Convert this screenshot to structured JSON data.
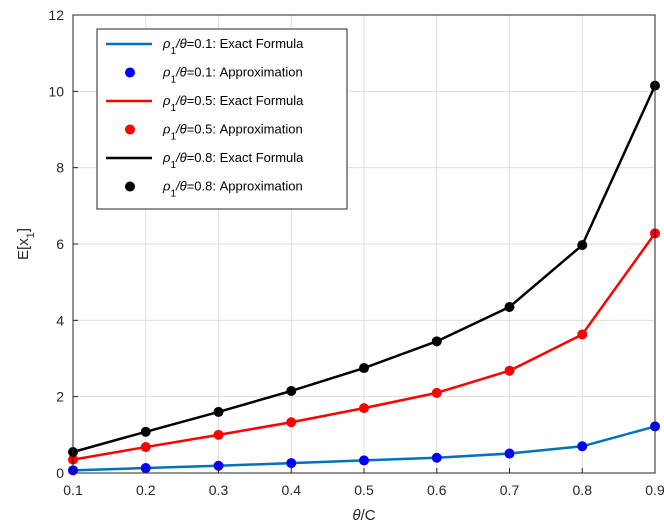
{
  "chart_data": {
    "type": "line",
    "x": [
      0.1,
      0.2,
      0.3,
      0.4,
      0.5,
      0.6,
      0.7,
      0.8,
      0.9
    ],
    "xlabel_italic": "θ",
    "xlabel_rest": "/C",
    "ylabel_main": "E[x",
    "ylabel_sub": "1",
    "ylabel_close": "]",
    "xlim": [
      0.1,
      0.9
    ],
    "ylim": [
      0,
      12
    ],
    "xticks": [
      "0.1",
      "0.2",
      "0.3",
      "0.4",
      "0.5",
      "0.6",
      "0.7",
      "0.8",
      "0.9"
    ],
    "yticks": [
      "0",
      "2",
      "4",
      "6",
      "8",
      "10",
      "12"
    ],
    "grid": true,
    "legend_position": "top-left",
    "series": [
      {
        "rho": "0.1",
        "color": "#0072BD",
        "exact": [
          0.07,
          0.13,
          0.19,
          0.26,
          0.33,
          0.4,
          0.51,
          0.7,
          1.22
        ],
        "approx": [
          0.07,
          0.13,
          0.19,
          0.26,
          0.33,
          0.4,
          0.51,
          0.7,
          1.22
        ]
      },
      {
        "rho": "0.5",
        "color": "#FF0000",
        "exact": [
          0.35,
          0.68,
          1.0,
          1.33,
          1.7,
          2.1,
          2.68,
          3.63,
          6.28
        ],
        "approx": [
          0.35,
          0.68,
          1.0,
          1.33,
          1.7,
          2.1,
          2.68,
          3.63,
          6.28
        ]
      },
      {
        "rho": "0.8",
        "color": "#000000",
        "exact": [
          0.55,
          1.08,
          1.6,
          2.15,
          2.75,
          3.45,
          4.35,
          5.97,
          10.15
        ],
        "approx": [
          0.55,
          1.08,
          1.6,
          2.15,
          2.75,
          3.45,
          4.35,
          5.97,
          10.15
        ]
      }
    ],
    "legend": [
      {
        "prefix": "ρ",
        "sub": "1",
        "slash_theta": "/θ",
        "value": "=0.1: ",
        "label": "Exact Formula",
        "kind": "line",
        "color": "#0072BD"
      },
      {
        "prefix": "ρ",
        "sub": "1",
        "slash_theta": "/θ",
        "value": "=0.1: ",
        "label": "Approximation",
        "kind": "marker",
        "color": "#0000FF"
      },
      {
        "prefix": "ρ",
        "sub": "1",
        "slash_theta": "/θ",
        "value": "=0.5: ",
        "label": "Exact Formula",
        "kind": "line",
        "color": "#FF0000"
      },
      {
        "prefix": "ρ",
        "sub": "1",
        "slash_theta": "/θ",
        "value": "=0.5: ",
        "label": "Approximation",
        "kind": "marker",
        "color": "#FF0000"
      },
      {
        "prefix": "ρ",
        "sub": "1",
        "slash_theta": "/θ",
        "value": "=0.8: ",
        "label": "Exact Formula",
        "kind": "line",
        "color": "#000000"
      },
      {
        "prefix": "ρ",
        "sub": "1",
        "slash_theta": "/θ",
        "value": "=0.8: ",
        "label": "Approximation",
        "kind": "marker",
        "color": "#000000"
      }
    ],
    "approx_marker_colors": [
      "#0000FF",
      "#FF0000",
      "#000000"
    ]
  }
}
